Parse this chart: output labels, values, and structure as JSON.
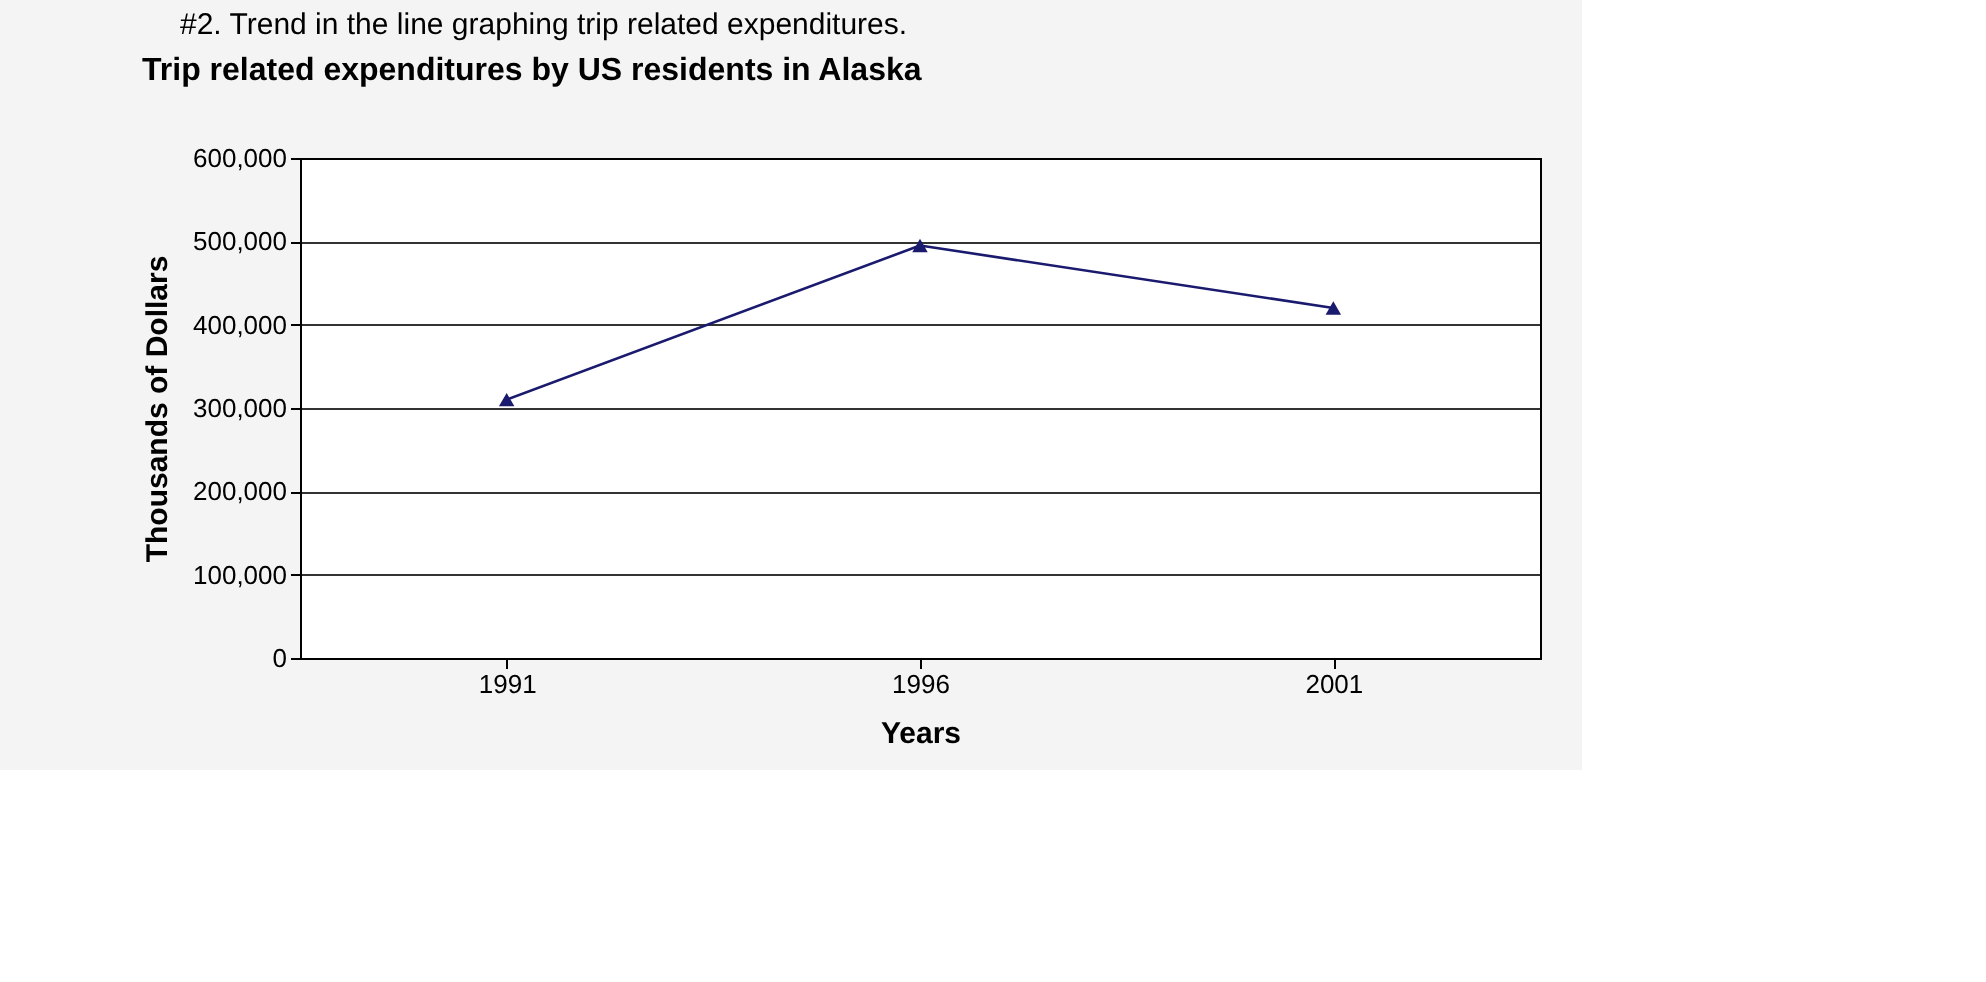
{
  "chart_data": {
    "type": "line",
    "title": "Trip related expenditures by US residents in Alaska",
    "xlabel": "Years",
    "ylabel": "Thousands of Dollars",
    "annotations": [
      "#2. Trend in the line graphing trip related expenditures."
    ],
    "categories": [
      "1991",
      "1996",
      "2001"
    ],
    "series": [
      {
        "color": "#1a1a6e",
        "values": [
          310000,
          495000,
          420000
        ]
      }
    ],
    "ylim": [
      0,
      600000
    ],
    "yticks": [
      0,
      {
        "value": 100000,
        "label": "100,000"
      },
      {
        "value": 200000,
        "label": "200,000"
      },
      {
        "value": 300000,
        "label": "300,000"
      },
      {
        "value": 400000,
        "label": "400,000"
      },
      {
        "value": 500000,
        "label": "500,000"
      },
      {
        "value": 600000,
        "label": "600,000"
      }
    ],
    "grid": "y",
    "marker": "triangle",
    "line_style": "solid"
  }
}
